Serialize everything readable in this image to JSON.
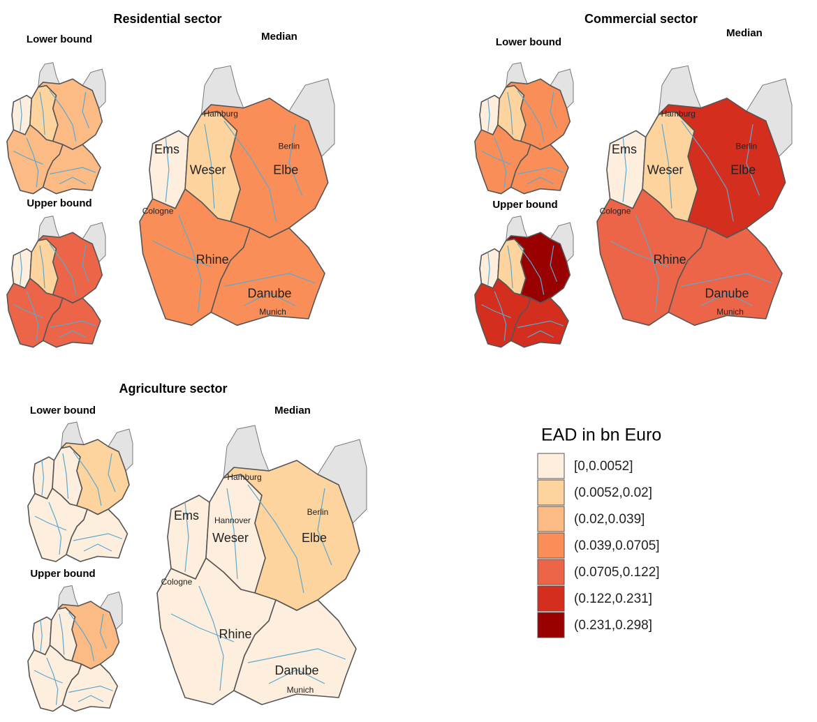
{
  "panels": [
    {
      "title": "Residential sector",
      "lower": {
        "label": "Lower bound",
        "fills": [
          "#fdeedd",
          "#fdd39e",
          "#fcba85",
          "#fcba85",
          "#fcba85"
        ]
      },
      "upper": {
        "label": "Upper bound",
        "fills": [
          "#fdeedd",
          "#fdd39e",
          "#ec6548",
          "#ec6548",
          "#ec6548"
        ]
      },
      "median": {
        "label": "Median",
        "fills": [
          "#fdeedd",
          "#fdd39e",
          "#f98e58",
          "#f98e58",
          "#f98e58"
        ],
        "place_labels": [
          "Hamburg",
          "Berlin",
          "Ems",
          "Weser",
          "Elbe",
          "Cologne",
          "Rhine",
          "Danube",
          "Munich"
        ]
      }
    },
    {
      "title": "Commercial sector",
      "lower": {
        "label": "Lower bound",
        "fills": [
          "#fdeedd",
          "#fdd39e",
          "#f98e58",
          "#f98e58",
          "#f98e58"
        ]
      },
      "upper": {
        "label": "Upper bound",
        "fills": [
          "#fdeedd",
          "#fdd39e",
          "#990000",
          "#d42e1f",
          "#d42e1f"
        ]
      },
      "median": {
        "label": "Median",
        "fills": [
          "#fdeedd",
          "#fdd39e",
          "#d42e1f",
          "#ec6548",
          "#ec6548"
        ],
        "place_labels": [
          "Hamburg",
          "Berlin",
          "Ems",
          "Weser",
          "Elbe",
          "Cologne",
          "Rhine",
          "Danube",
          "Munich"
        ]
      }
    },
    {
      "title": "Agriculture sector",
      "lower": {
        "label": "Lower bound",
        "fills": [
          "#fdeedd",
          "#fdeedd",
          "#fdd39e",
          "#fdeedd",
          "#fdeedd"
        ]
      },
      "upper": {
        "label": "Upper bound",
        "fills": [
          "#fdeedd",
          "#fdeedd",
          "#fcba85",
          "#fdeedd",
          "#fdeedd"
        ]
      },
      "median": {
        "label": "Median",
        "fills": [
          "#fdeedd",
          "#fdeedd",
          "#fdd39e",
          "#fdeedd",
          "#fdeedd"
        ],
        "place_labels": [
          "Hamburg",
          "Berlin",
          "Ems",
          "Weser",
          "Elbe",
          "Cologne",
          "Rhine",
          "Danube",
          "Munich",
          "Hannover"
        ]
      }
    }
  ],
  "legend": {
    "title": "EAD in bn Euro",
    "items": [
      {
        "label": "[0,0.0052]",
        "color": "#fdeedd"
      },
      {
        "label": "(0.0052,0.02]",
        "color": "#fdd39e"
      },
      {
        "label": "(0.02,0.039]",
        "color": "#fcba85"
      },
      {
        "label": "(0.039,0.0705]",
        "color": "#f98e58"
      },
      {
        "label": "(0.0705,0.122]",
        "color": "#ec6548"
      },
      {
        "label": "(0.122,0.231]",
        "color": "#d42e1f"
      },
      {
        "label": "(0.231,0.298]",
        "color": "#990000"
      }
    ]
  }
}
